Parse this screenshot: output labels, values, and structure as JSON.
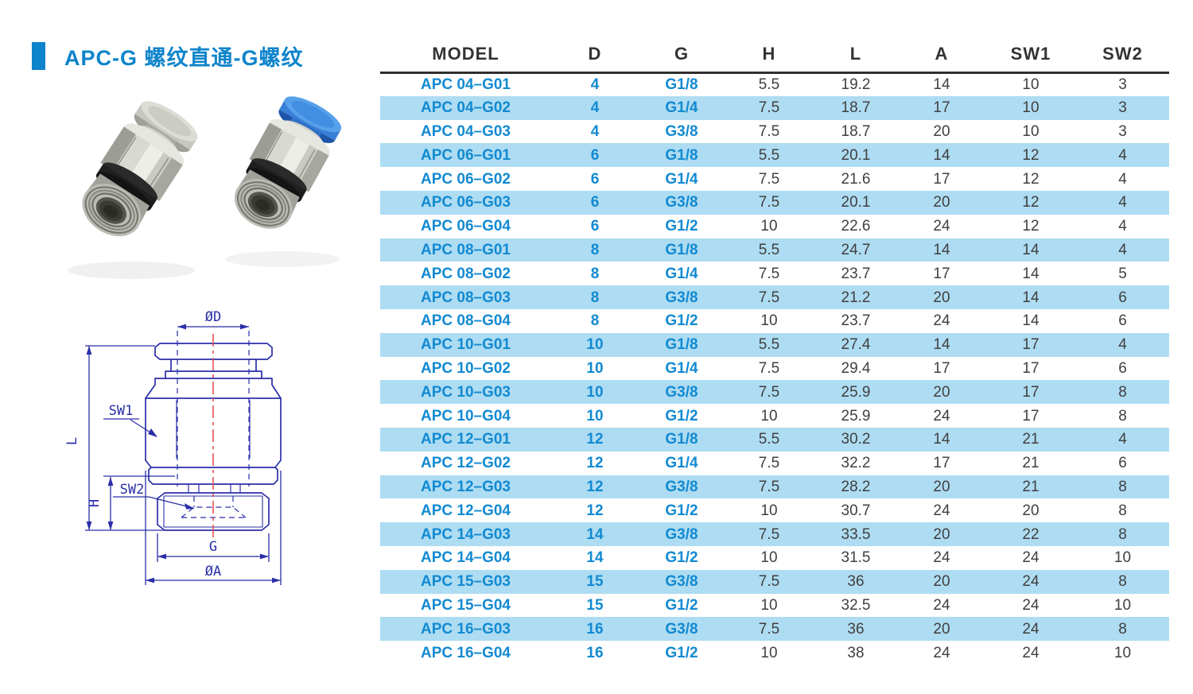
{
  "header": {
    "title": "APC-G 螺纹直通-G螺纹",
    "accent_color": "#0d84cb"
  },
  "photo": {
    "description": "Two APC-G push-in male straight fittings, metal hex body with black O-ring; left has grey release collar, right has blue release collar",
    "left_collar_color": "#c9cac2",
    "right_collar_color": "#3f8fe8"
  },
  "diagram": {
    "labels": {
      "d": "ØD",
      "l": "L",
      "sw1": "SW1",
      "sw2": "SW2",
      "h": "H",
      "g": "G",
      "a": "ØA"
    },
    "line_color": "#2a2fa8",
    "centerline_color": "#e44c4c"
  },
  "table": {
    "columns": [
      "MODEL",
      "D",
      "G",
      "H",
      "L",
      "A",
      "SW1",
      "SW2"
    ],
    "rows": [
      [
        "APC 04–G01",
        "4",
        "G1/8",
        "5.5",
        "19.2",
        "14",
        "10",
        "3"
      ],
      [
        "APC 04–G02",
        "4",
        "G1/4",
        "7.5",
        "18.7",
        "17",
        "10",
        "3"
      ],
      [
        "APC 04–G03",
        "4",
        "G3/8",
        "7.5",
        "18.7",
        "20",
        "10",
        "3"
      ],
      [
        "APC 06–G01",
        "6",
        "G1/8",
        "5.5",
        "20.1",
        "14",
        "12",
        "4"
      ],
      [
        "APC 06–G02",
        "6",
        "G1/4",
        "7.5",
        "21.6",
        "17",
        "12",
        "4"
      ],
      [
        "APC 06–G03",
        "6",
        "G3/8",
        "7.5",
        "20.1",
        "20",
        "12",
        "4"
      ],
      [
        "APC 06–G04",
        "6",
        "G1/2",
        "10",
        "22.6",
        "24",
        "12",
        "4"
      ],
      [
        "APC 08–G01",
        "8",
        "G1/8",
        "5.5",
        "24.7",
        "14",
        "14",
        "4"
      ],
      [
        "APC 08–G02",
        "8",
        "G1/4",
        "7.5",
        "23.7",
        "17",
        "14",
        "5"
      ],
      [
        "APC 08–G03",
        "8",
        "G3/8",
        "7.5",
        "21.2",
        "20",
        "14",
        "6"
      ],
      [
        "APC 08–G04",
        "8",
        "G1/2",
        "10",
        "23.7",
        "24",
        "14",
        "6"
      ],
      [
        "APC 10–G01",
        "10",
        "G1/8",
        "5.5",
        "27.4",
        "14",
        "17",
        "4"
      ],
      [
        "APC 10–G02",
        "10",
        "G1/4",
        "7.5",
        "29.4",
        "17",
        "17",
        "6"
      ],
      [
        "APC 10–G03",
        "10",
        "G3/8",
        "7.5",
        "25.9",
        "20",
        "17",
        "8"
      ],
      [
        "APC 10–G04",
        "10",
        "G1/2",
        "10",
        "25.9",
        "24",
        "17",
        "8"
      ],
      [
        "APC 12–G01",
        "12",
        "G1/8",
        "5.5",
        "30.2",
        "14",
        "21",
        "4"
      ],
      [
        "APC 12–G02",
        "12",
        "G1/4",
        "7.5",
        "32.2",
        "17",
        "21",
        "6"
      ],
      [
        "APC 12–G03",
        "12",
        "G3/8",
        "7.5",
        "28.2",
        "20",
        "21",
        "8"
      ],
      [
        "APC 12–G04",
        "12",
        "G1/2",
        "10",
        "30.7",
        "24",
        "20",
        "8"
      ],
      [
        "APC 14–G03",
        "14",
        "G3/8",
        "7.5",
        "33.5",
        "20",
        "22",
        "8"
      ],
      [
        "APC 14–G04",
        "14",
        "G1/2",
        "10",
        "31.5",
        "24",
        "24",
        "10"
      ],
      [
        "APC 15–G03",
        "15",
        "G3/8",
        "7.5",
        "36",
        "20",
        "24",
        "8"
      ],
      [
        "APC 15–G04",
        "15",
        "G1/2",
        "10",
        "32.5",
        "24",
        "24",
        "10"
      ],
      [
        "APC 16–G03",
        "16",
        "G3/8",
        "7.5",
        "36",
        "20",
        "24",
        "8"
      ],
      [
        "APC 16–G04",
        "16",
        "G1/2",
        "10",
        "38",
        "24",
        "24",
        "10"
      ]
    ],
    "stripe_color": "#aedcf2",
    "model_text_color": "#128ad2",
    "value_text_color": "#404040"
  }
}
